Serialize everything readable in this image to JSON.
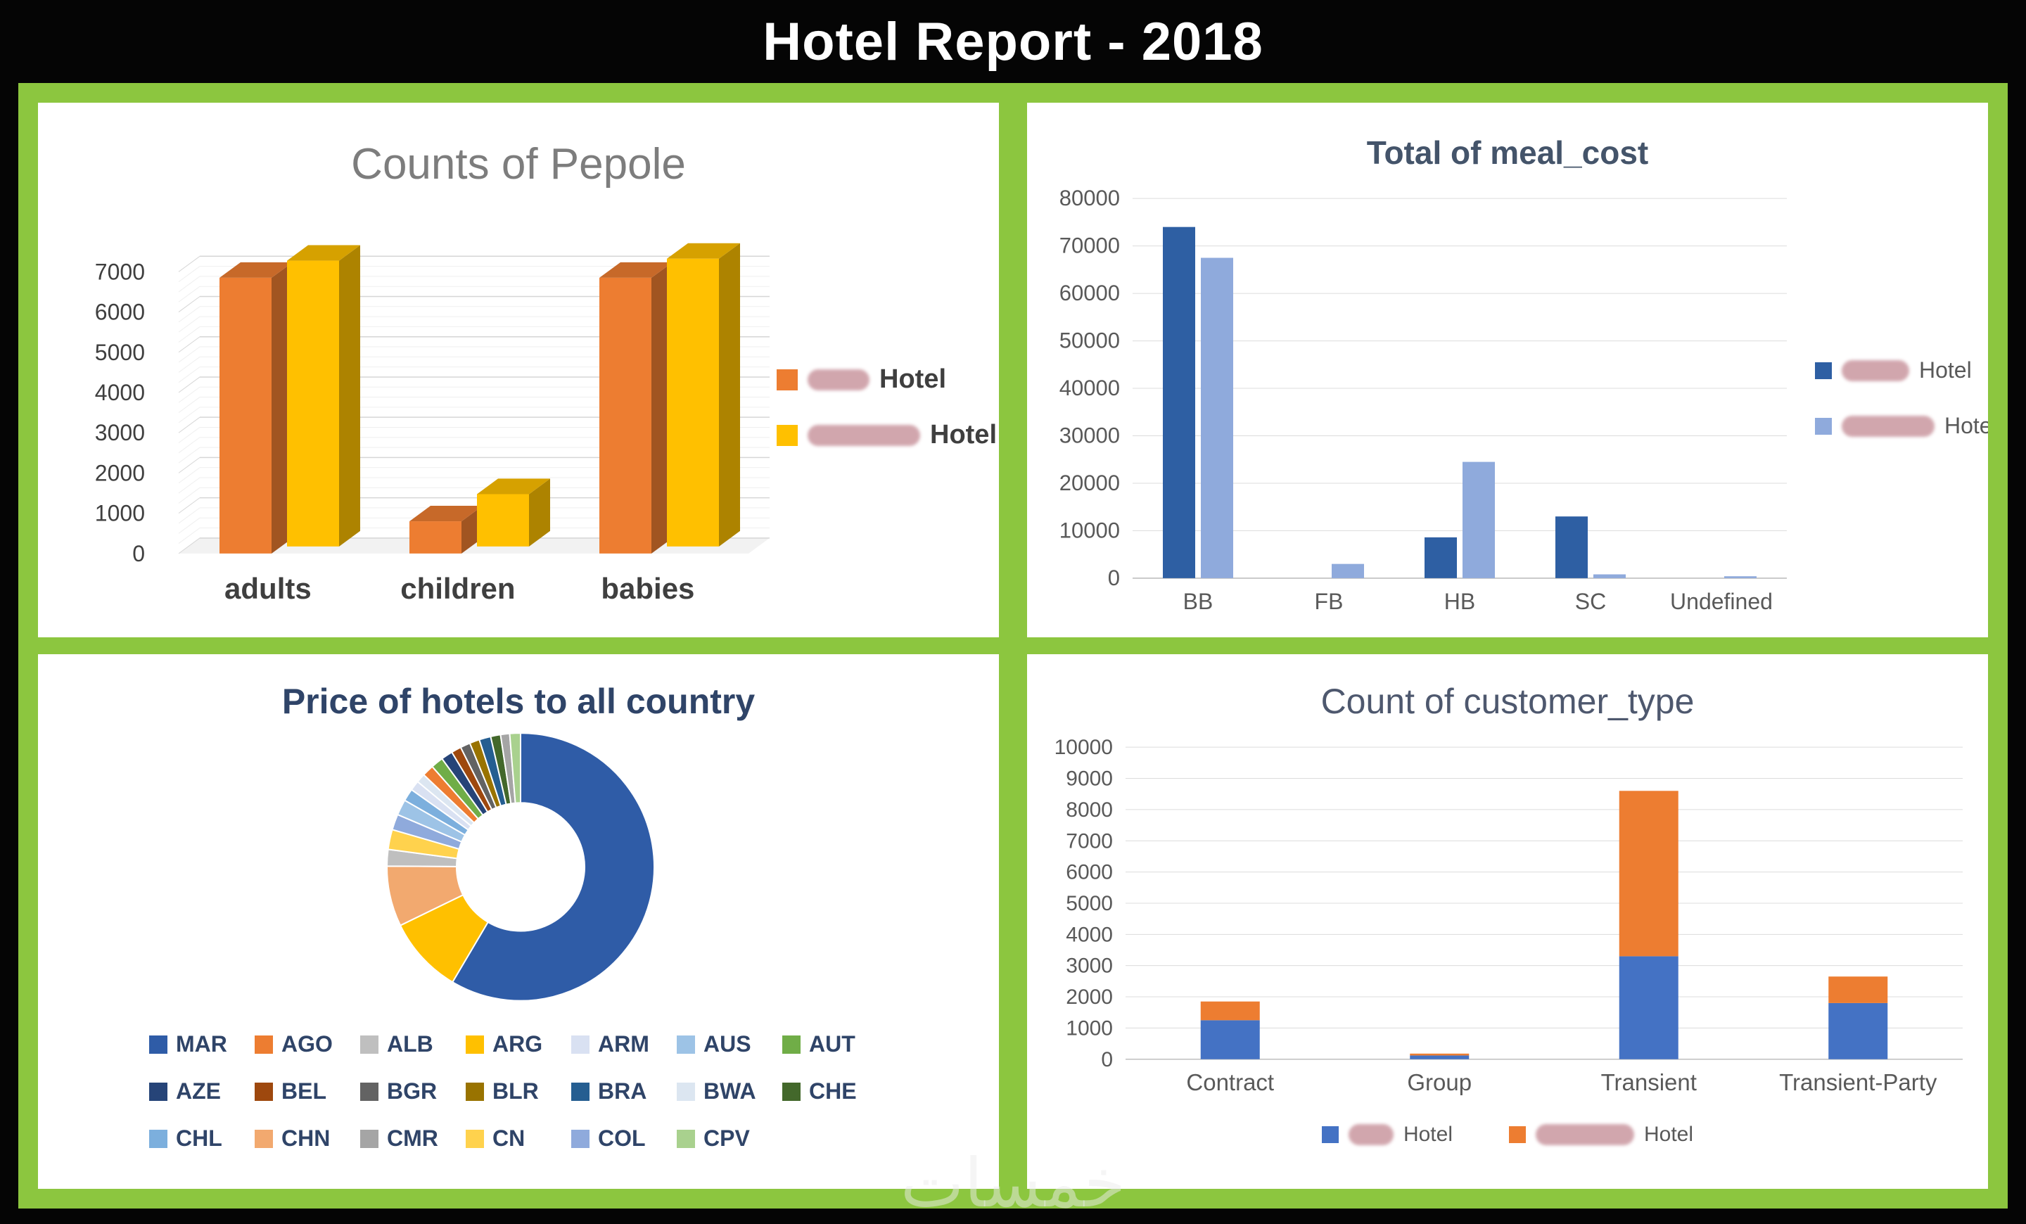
{
  "page": {
    "title": "Hotel Report - 2018",
    "watermark": "خمسات",
    "frame_color": "#8CC63F",
    "background": "#000000"
  },
  "chart_data": [
    {
      "id": "people",
      "type": "bar",
      "variant": "3d-clustered",
      "title": "Counts of Pepole",
      "categories": [
        "adults",
        "children",
        "babies"
      ],
      "series": [
        {
          "name": "Hotel",
          "name_redacted": true,
          "color": "#ED7D31",
          "values": [
            6850,
            800,
            6850
          ]
        },
        {
          "name": "Hotel",
          "name_redacted": true,
          "color": "#FFC000",
          "values": [
            7100,
            1300,
            7150
          ]
        }
      ],
      "ylim": [
        0,
        7000
      ],
      "ystep": 1000,
      "grid": true,
      "legend_position": "right"
    },
    {
      "id": "meal",
      "type": "bar",
      "variant": "clustered",
      "title": "Total of meal_cost",
      "categories": [
        "BB",
        "FB",
        "HB",
        "SC",
        "Undefined"
      ],
      "series": [
        {
          "name": "Hotel",
          "name_redacted": true,
          "color": "#2E5FA3",
          "values": [
            74000,
            0,
            8600,
            13000,
            0
          ]
        },
        {
          "name": "Hotel",
          "name_redacted": true,
          "color": "#8FAADC",
          "values": [
            67500,
            3000,
            24500,
            800,
            400
          ]
        }
      ],
      "ylim": [
        0,
        80000
      ],
      "ystep": 10000,
      "grid": true,
      "legend_position": "right"
    },
    {
      "id": "price",
      "type": "pie",
      "variant": "donut",
      "title": "Price of hotels to all country",
      "slices": [
        {
          "label": "MAR",
          "value": 58.5,
          "color": "#2F5CA7"
        },
        {
          "label": "ARG",
          "value": 9.3,
          "color": "#FFC000"
        },
        {
          "label": "CHN",
          "value": 7.3,
          "color": "#F2A96F"
        },
        {
          "label": "ALB",
          "value": 2.0,
          "color": "#BFBFBF"
        },
        {
          "label": "CN",
          "value": 2.4,
          "color": "#FFD24D"
        },
        {
          "label": "COL",
          "value": 1.9,
          "color": "#8FAADC"
        },
        {
          "label": "AUS",
          "value": 1.9,
          "color": "#9DC3E6"
        },
        {
          "label": "CHL",
          "value": 1.5,
          "color": "#7CAFDD"
        },
        {
          "label": "ARM",
          "value": 1.2,
          "color": "#D9E1F2"
        },
        {
          "label": "BWA",
          "value": 1.1,
          "color": "#DCE6F1"
        },
        {
          "label": "AGO",
          "value": 1.4,
          "color": "#ED7D31"
        },
        {
          "label": "AUT",
          "value": 1.5,
          "color": "#70AD47"
        },
        {
          "label": "AZE",
          "value": 1.4,
          "color": "#264478"
        },
        {
          "label": "BEL",
          "value": 1.2,
          "color": "#9E480E"
        },
        {
          "label": "BGR",
          "value": 1.2,
          "color": "#636363"
        },
        {
          "label": "BLR",
          "value": 1.2,
          "color": "#997300"
        },
        {
          "label": "BRA",
          "value": 1.4,
          "color": "#255E91"
        },
        {
          "label": "CHE",
          "value": 1.2,
          "color": "#43682B"
        },
        {
          "label": "CMR",
          "value": 1.1,
          "color": "#A5A5A5"
        },
        {
          "label": "CPV",
          "value": 1.3,
          "color": "#A9D18E"
        }
      ],
      "legend_order": [
        "MAR",
        "AGO",
        "ALB",
        "ARG",
        "ARM",
        "AUS",
        "AUT",
        "AZE",
        "BEL",
        "BGR",
        "BLR",
        "BRA",
        "BWA",
        "CHE",
        "CHL",
        "CHN",
        "CMR",
        "CN",
        "COL",
        "CPV"
      ],
      "legend_position": "bottom"
    },
    {
      "id": "customer",
      "type": "bar",
      "variant": "stacked",
      "title": "Count of customer_type",
      "categories": [
        "Contract",
        "Group",
        "Transient",
        "Transient-Party"
      ],
      "series": [
        {
          "name": "Hotel",
          "name_redacted": true,
          "color": "#4472C4",
          "values": [
            1250,
            120,
            3300,
            1800
          ]
        },
        {
          "name": "Hotel",
          "name_redacted": true,
          "color": "#ED7D31",
          "values": [
            600,
            60,
            5300,
            850
          ]
        }
      ],
      "ylim": [
        0,
        10000
      ],
      "ystep": 1000,
      "grid": true,
      "legend_position": "bottom"
    }
  ]
}
